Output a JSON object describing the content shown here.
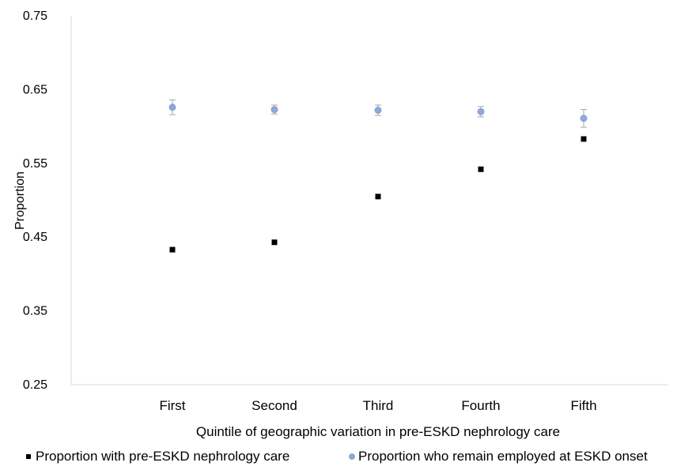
{
  "chart_data": {
    "type": "scatter",
    "title": "",
    "xlabel": "Quintile of geographic variation in pre-ESKD nephrology care",
    "ylabel": "Proportion",
    "categories": [
      "First",
      "Second",
      "Third",
      "Fourth",
      "Fifth"
    ],
    "ylim": [
      0.25,
      0.75
    ],
    "yticks": [
      "0.25",
      "0.35",
      "0.45",
      "0.55",
      "0.65",
      "0.75"
    ],
    "grid": false,
    "legend_position": "bottom",
    "series": [
      {
        "name": "Proportion with pre-ESKD nephrology care",
        "marker": "square",
        "color": "#000000",
        "values": [
          0.433,
          0.443,
          0.505,
          0.542,
          0.583
        ]
      },
      {
        "name": "Proportion who remain employed at ESKD onset",
        "marker": "circle",
        "color": "#8EA9DB",
        "values": [
          0.626,
          0.623,
          0.622,
          0.62,
          0.611
        ],
        "error": [
          0.01,
          0.006,
          0.007,
          0.007,
          0.012
        ]
      }
    ]
  }
}
